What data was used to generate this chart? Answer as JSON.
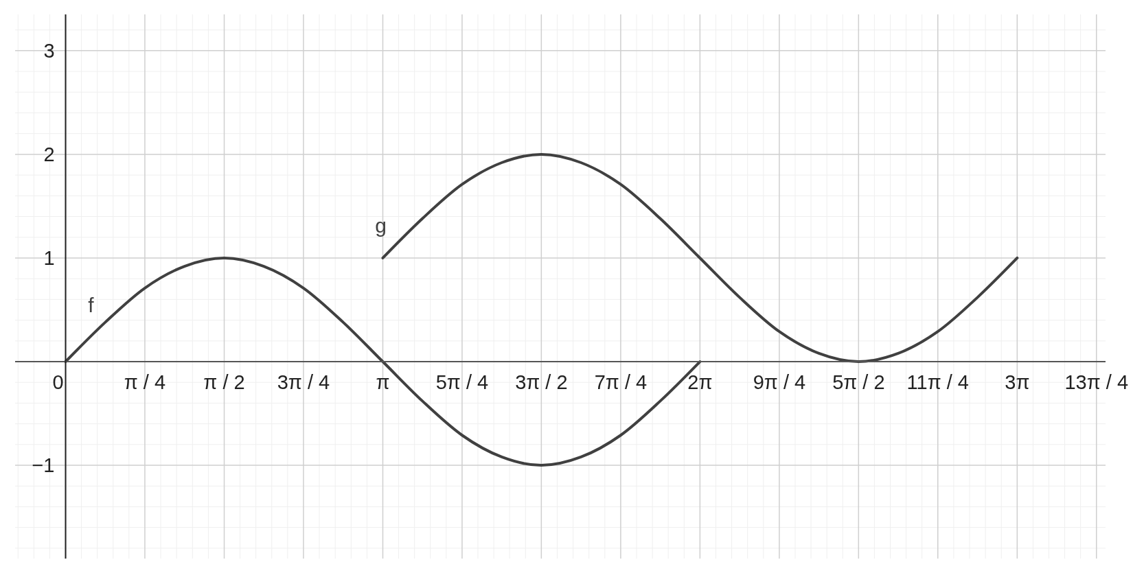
{
  "chart_data": {
    "type": "line",
    "series": [
      {
        "name": "f",
        "color": "#404040",
        "x": [
          0,
          0.393,
          0.785,
          1.178,
          1.571,
          1.963,
          2.356,
          2.749,
          3.142,
          3.534,
          3.927,
          4.32,
          4.712,
          5.105,
          5.498,
          5.89,
          6.283
        ],
        "values": [
          0,
          0.38,
          0.71,
          0.92,
          1,
          0.92,
          0.71,
          0.38,
          0,
          -0.38,
          -0.71,
          -0.92,
          -1,
          -0.92,
          -0.71,
          -0.38,
          0
        ]
      },
      {
        "name": "g",
        "color": "#404040",
        "x": [
          3.142,
          3.534,
          3.927,
          4.32,
          4.712,
          5.105,
          5.498,
          5.89,
          6.283,
          6.676,
          7.069,
          7.461,
          7.854,
          8.247,
          8.639,
          9.032,
          9.425
        ],
        "values": [
          1,
          1.38,
          1.71,
          1.92,
          2,
          1.92,
          1.71,
          1.38,
          1,
          0.62,
          0.29,
          0.08,
          0,
          0.08,
          0.29,
          0.62,
          1
        ]
      }
    ],
    "xlim": [
      -0.5,
      10.3
    ],
    "ylim": [
      -1.9,
      3.35
    ],
    "xticks": [
      {
        "value": 0,
        "label": "0"
      },
      {
        "value": 0.785,
        "label": "π / 4"
      },
      {
        "value": 1.571,
        "label": "π / 2"
      },
      {
        "value": 2.356,
        "label": "3π / 4"
      },
      {
        "value": 3.142,
        "label": "π"
      },
      {
        "value": 3.927,
        "label": "5π / 4"
      },
      {
        "value": 4.712,
        "label": "3π / 2"
      },
      {
        "value": 5.498,
        "label": "7π / 4"
      },
      {
        "value": 6.283,
        "label": "2π"
      },
      {
        "value": 7.069,
        "label": "9π / 4"
      },
      {
        "value": 7.854,
        "label": "5π / 2"
      },
      {
        "value": 8.639,
        "label": "11π / 4"
      },
      {
        "value": 9.425,
        "label": "3π"
      },
      {
        "value": 10.21,
        "label": "13π / 4"
      }
    ],
    "yticks": [
      {
        "value": -1,
        "label": "−1"
      },
      {
        "value": 0,
        "label": null
      },
      1,
      2,
      3
    ],
    "grid": true,
    "marker": "none",
    "line_style": "solid"
  }
}
